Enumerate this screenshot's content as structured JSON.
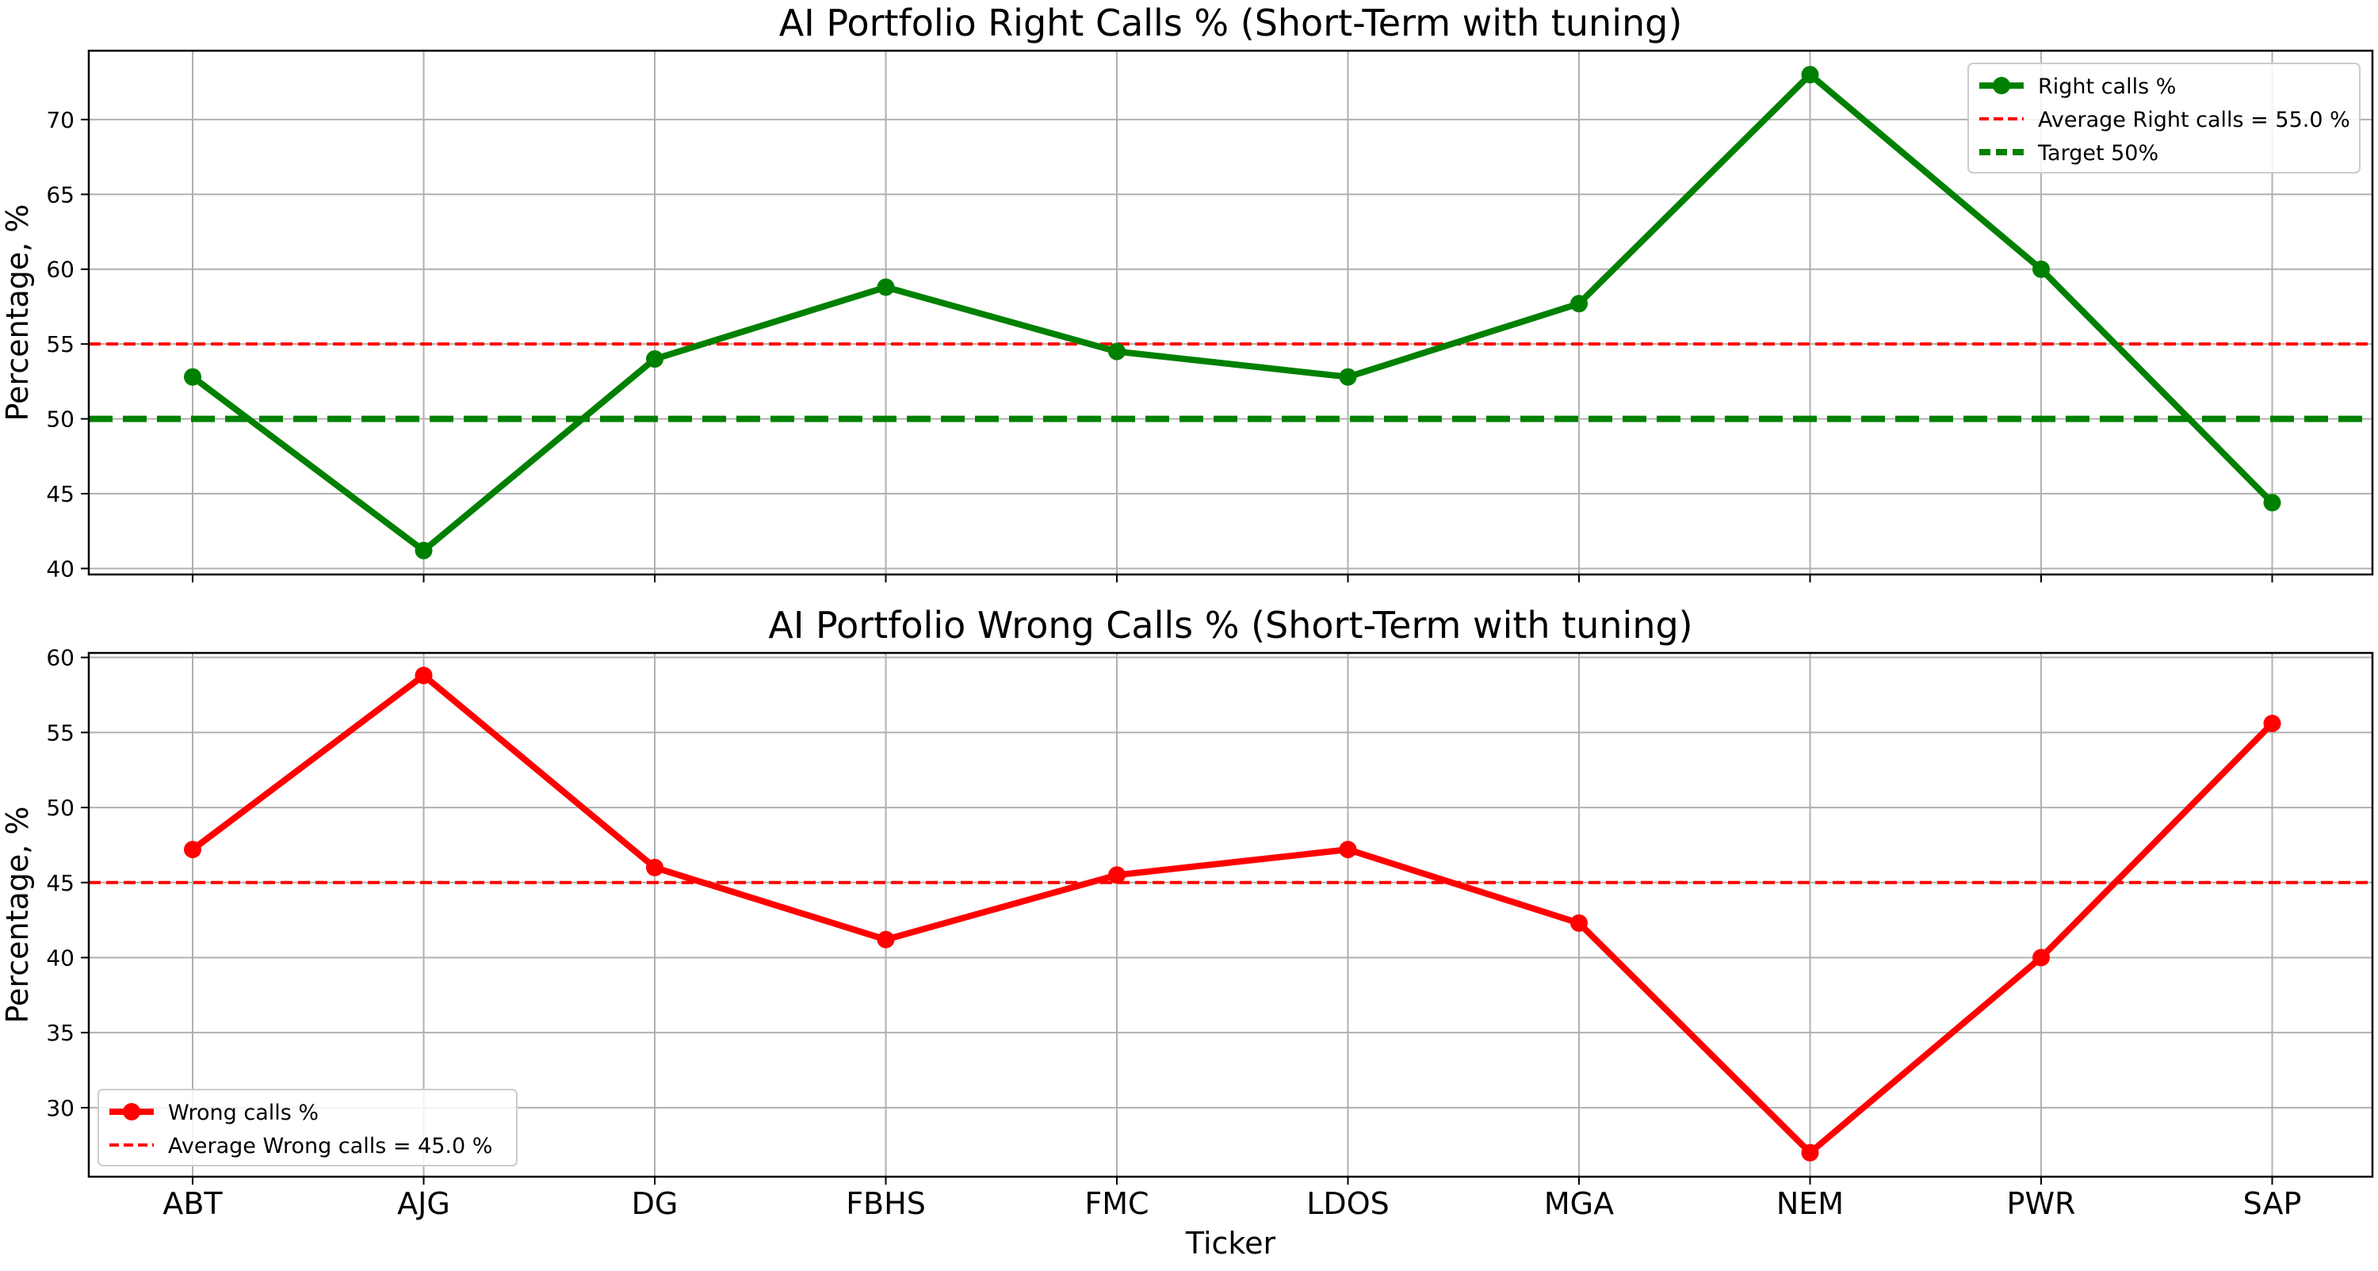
{
  "chart_data": [
    {
      "type": "line",
      "title": "AI Portfolio Right Calls % (Short-Term with tuning)",
      "xlabel": "",
      "ylabel": "Percentage, %",
      "categories": [
        "ABT",
        "AJG",
        "DG",
        "FBHS",
        "FMC",
        "LDOS",
        "MGA",
        "NEM",
        "PWR",
        "SAP"
      ],
      "ylim": [
        39.6,
        74.6
      ],
      "yticks": [
        40,
        45,
        50,
        55,
        60,
        65,
        70
      ],
      "grid": true,
      "legend_position": "top-right",
      "series": [
        {
          "name": "Right calls %",
          "color": "#008000",
          "values": [
            52.8,
            41.2,
            54.0,
            58.8,
            54.5,
            52.8,
            57.7,
            73.0,
            60.0,
            44.4
          ]
        }
      ],
      "reference_lines": [
        {
          "name": "Average Right calls = 55.0 %",
          "value": 55.0,
          "color": "#ff0000",
          "style": "dashed"
        },
        {
          "name": "Target 50%",
          "value": 50.0,
          "color": "#008000",
          "style": "dashed-bold"
        }
      ]
    },
    {
      "type": "line",
      "title": "AI Portfolio Wrong Calls % (Short-Term with tuning)",
      "xlabel": "Ticker",
      "ylabel": "Percentage, %",
      "categories": [
        "ABT",
        "AJG",
        "DG",
        "FBHS",
        "FMC",
        "LDOS",
        "MGA",
        "NEM",
        "PWR",
        "SAP"
      ],
      "ylim": [
        25.4,
        60.3
      ],
      "yticks": [
        30,
        35,
        40,
        45,
        50,
        55,
        60
      ],
      "grid": true,
      "legend_position": "bottom-left",
      "series": [
        {
          "name": "Wrong calls %",
          "color": "#ff0000",
          "values": [
            47.2,
            58.8,
            46.0,
            41.2,
            45.5,
            47.2,
            42.3,
            27.0,
            40.0,
            55.6
          ]
        }
      ],
      "reference_lines": [
        {
          "name": "Average Wrong calls = 45.0 %",
          "value": 45.0,
          "color": "#ff0000",
          "style": "dashed"
        }
      ]
    }
  ]
}
